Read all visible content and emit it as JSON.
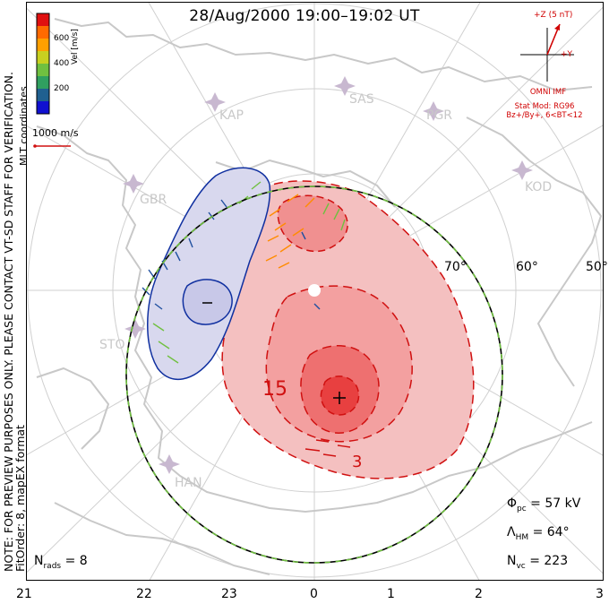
{
  "title": "28/Aug/2000 19:00–19:02 UT",
  "side_note_line1": "NOTE: FOR PREVIEW PURPOSES ONLY. PLEASE CONTACT VT-SD STAFF FOR VERIFICATION.",
  "side_note_line2": "FitOrder: 8, mapEX format",
  "coord_label": "MLT coordinates",
  "colorbar": {
    "title": "Vel [m/s]",
    "ticks": [
      "600",
      "400",
      "200"
    ],
    "colors": [
      "#e01010",
      "#ff6a00",
      "#ffa000",
      "#c8d020",
      "#70c040",
      "#30a060",
      "#206090",
      "#1010d0"
    ]
  },
  "scale_vector_label": "1000 m/s",
  "imf": {
    "z_label": "+Z (5 nT)",
    "y_label": "+Y",
    "source": "OMNI IMF",
    "model_line1": "Stat Mod: RG96",
    "model_line2": "Bz+/By+, 6<BT<12"
  },
  "stations": [
    "KAP",
    "SAS",
    "PGR",
    "KOD",
    "GBR",
    "STO",
    "HAN"
  ],
  "lat_labels": [
    "70°",
    "60°",
    "50°"
  ],
  "contour_labels": [
    "15",
    "3"
  ],
  "mlt_ticks": [
    "21",
    "22",
    "23",
    "0",
    "1",
    "2",
    "3"
  ],
  "stats": {
    "nrads_label": "N",
    "nrads_sub": "rads",
    "nrads_value": "= 8",
    "phi_label": "Φ",
    "phi_sub": "pc",
    "phi_value": "= 57 kV",
    "lambda_label": "Λ",
    "lambda_sub": "HM",
    "lambda_value": "= 64°",
    "nvc_label": "N",
    "nvc_sub": "vc",
    "nvc_value": "= 223"
  },
  "colors": {
    "negative_cell": "#1030a0",
    "positive_cell": "#d01010",
    "boundary": "#70c040",
    "coastline": "#c8c8c8",
    "grid": "#d0d0d0",
    "station": "#c8b8d0"
  }
}
